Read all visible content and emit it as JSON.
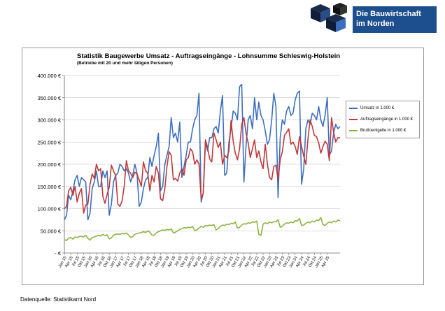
{
  "logo": {
    "line1": "Die Bauwirtschaft",
    "line2": "im Norden"
  },
  "source": "Datenquelle: Statistikamt Nord",
  "chart_data": {
    "type": "line",
    "title": "Statistik Baugewerbe Umsatz - Auftragseingänge - Lohnsumme Schleswig-Holstein",
    "subtitle": "(Betriebe mit 20 und mehr tätigen Personen)",
    "ylim": [
      0,
      400000
    ],
    "yticks": [
      "- €",
      "50.000 €",
      "100.000 €",
      "150.000 €",
      "200.000 €",
      "250.000 €",
      "300.000 €",
      "350.000 €",
      "400.000 €"
    ],
    "x_tick_labels": [
      "Jan 15",
      "Apr 15",
      "Jul 15",
      "Okt 15",
      "Jan 16",
      "Apr 16",
      "Jul 16",
      "Okt 16",
      "Jan 17",
      "Apr 17",
      "Jul 17",
      "Okt 17",
      "Jan 18",
      "Apr 18",
      "Jul 18",
      "Okt 18",
      "Jan 19",
      "Apr 19",
      "Jul 19",
      "Okt 19",
      "Jan 20",
      "Apr 20",
      "Jul 20",
      "Okt 20",
      "Jan 21",
      "Apr 21",
      "Jul 21",
      "Okt 21",
      "Jan 22",
      "Apr 22",
      "Jul 22",
      "Okt 22",
      "Jan 23",
      "Apr 23",
      "Jul 23",
      "Okt 23",
      "Jan 24",
      "Apr 24",
      "Jul 24",
      "Okt 24",
      "Jan 25",
      "Apr 25"
    ],
    "x_months": 130,
    "legend_position": "right",
    "series": [
      {
        "name": "Umsatz in 1.000 €",
        "color": "#3f6fbf",
        "values": [
          75000,
          85000,
          130000,
          120000,
          140000,
          165000,
          175000,
          150000,
          170000,
          165000,
          160000,
          75000,
          90000,
          145000,
          160000,
          185000,
          150000,
          150000,
          185000,
          170000,
          185000,
          85000,
          110000,
          160000,
          175000,
          180000,
          200000,
          195000,
          185000,
          190000,
          180000,
          160000,
          175000,
          200000,
          180000,
          105000,
          115000,
          145000,
          165000,
          170000,
          215000,
          195000,
          220000,
          240000,
          270000,
          140000,
          150000,
          200000,
          220000,
          240000,
          305000,
          260000,
          270000,
          250000,
          295000,
          170000,
          195000,
          220000,
          250000,
          250000,
          280000,
          300000,
          310000,
          360000,
          115000,
          135000,
          250000,
          230000,
          260000,
          260000,
          280000,
          285000,
          270000,
          320000,
          355000,
          175000,
          180000,
          250000,
          280000,
          320000,
          315000,
          300000,
          375000,
          380000,
          160000,
          240000,
          300000,
          310000,
          280000,
          350000,
          300000,
          340000,
          310000,
          300000,
          275000,
          245000,
          255000,
          300000,
          360000,
          330000,
          125000,
          260000,
          300000,
          290000,
          320000,
          330000,
          310000,
          315000,
          345000,
          360000,
          365000,
          155000,
          190000,
          280000,
          300000,
          290000,
          315000,
          310000,
          300000,
          330000,
          300000,
          285000,
          310000,
          350000,
          220000,
          230000,
          270000,
          290000,
          280000,
          285000
        ]
      },
      {
        "name": "Auftragseingänge in 1.000 €",
        "color": "#c0393b",
        "values": [
          100000,
          105000,
          140000,
          148000,
          130000,
          150000,
          115000,
          135000,
          145000,
          90000,
          108000,
          110000,
          155000,
          178000,
          168000,
          200000,
          185000,
          190000,
          128000,
          112000,
          132000,
          148000,
          198000,
          185000,
          175000,
          110000,
          105000,
          118000,
          150000,
          208000,
          185000,
          180000,
          170000,
          182000,
          178000,
          165000,
          150000,
          205000,
          185000,
          180000,
          140000,
          175000,
          160000,
          195000,
          180000,
          122000,
          118000,
          145000,
          195000,
          228000,
          220000,
          165000,
          168000,
          162000,
          180000,
          190000,
          175000,
          210000,
          215000,
          235000,
          228000,
          200000,
          210000,
          200000,
          122000,
          135000,
          255000,
          238000,
          212000,
          205000,
          270000,
          255000,
          238000,
          250000,
          200000,
          220000,
          215000,
          230000,
          298000,
          252000,
          225000,
          210000,
          235000,
          290000,
          305000,
          270000,
          248000,
          215000,
          235000,
          255000,
          215000,
          230000,
          205000,
          190000,
          245000,
          200000,
          170000,
          165000,
          195000,
          198000,
          165000,
          210000,
          228000,
          265000,
          272000,
          280000,
          245000,
          250000,
          240000,
          222000,
          262000,
          240000,
          218000,
          200000,
          258000,
          300000,
          285000,
          265000,
          262000,
          248000,
          225000,
          240000,
          252000,
          245000,
          208000,
          305000,
          272000,
          250000,
          260000,
          260000
        ]
      },
      {
        "name": "Bruttoentgelte in 1.000 €",
        "color": "#8db443",
        "values": [
          30000,
          28000,
          33000,
          35000,
          31000,
          36000,
          35000,
          37000,
          38000,
          36000,
          40000,
          33000,
          29000,
          35000,
          36000,
          38000,
          40000,
          38000,
          42000,
          39000,
          41000,
          32000,
          34000,
          40000,
          42000,
          43000,
          42000,
          44000,
          43000,
          45000,
          41000,
          35000,
          37000,
          42000,
          44000,
          45000,
          46000,
          48000,
          46000,
          50000,
          47000,
          40000,
          40000,
          45000,
          48000,
          50000,
          52000,
          51000,
          53000,
          52000,
          54000,
          45000,
          47000,
          50000,
          53000,
          55000,
          57000,
          56000,
          58000,
          57000,
          60000,
          50000,
          52000,
          56000,
          60000,
          58000,
          62000,
          61000,
          63000,
          62000,
          64000,
          52000,
          55000,
          60000,
          63000,
          62000,
          65000,
          64000,
          67000,
          66000,
          70000,
          56000,
          58000,
          63000,
          66000,
          65000,
          68000,
          67000,
          70000,
          69000,
          72000,
          42000,
          40000,
          65000,
          68000,
          66000,
          70000,
          68000,
          71000,
          70000,
          75000,
          58000,
          60000,
          65000,
          68000,
          67000,
          70000,
          68000,
          73000,
          72000,
          78000,
          62000,
          63000,
          67000,
          70000,
          68000,
          72000,
          70000,
          74000,
          73000,
          80000,
          64000,
          62000,
          67000,
          70000,
          68000,
          72000,
          70000,
          74000,
          72000
        ]
      }
    ]
  }
}
